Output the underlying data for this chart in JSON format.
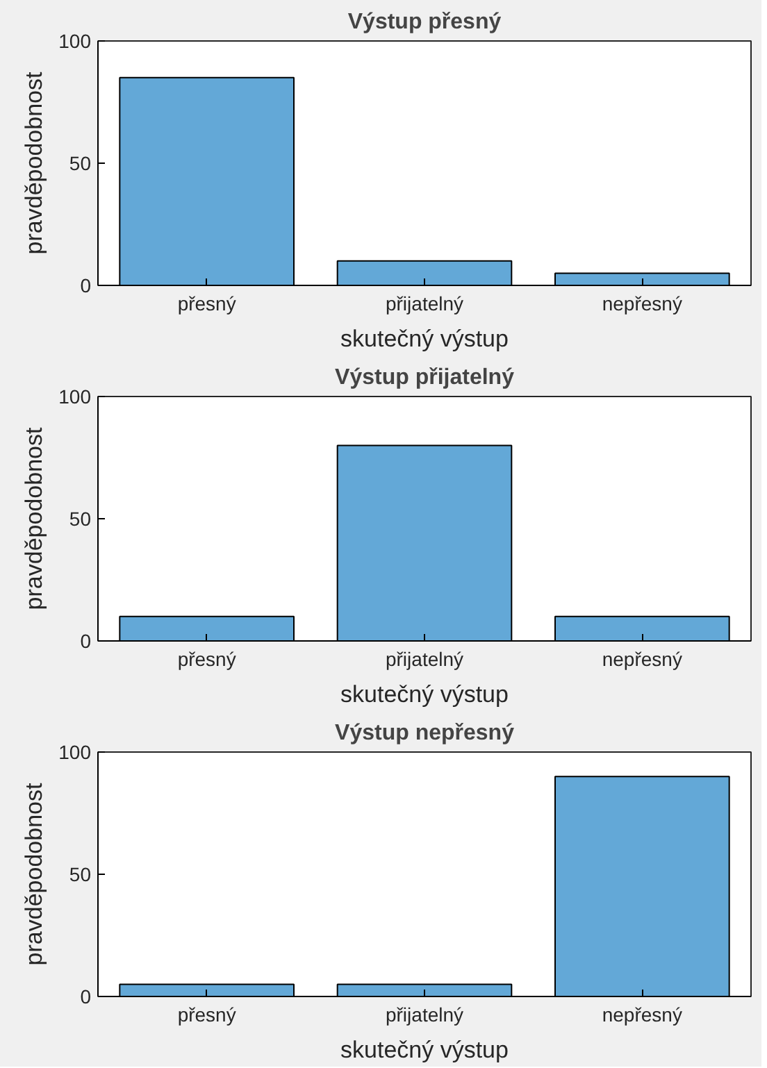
{
  "chart_data": [
    {
      "type": "bar",
      "title": "Výstup přesný",
      "xlabel": "skutečný výstup",
      "ylabel": "pravděpodobnost",
      "categories": [
        "přesný",
        "přijatelný",
        "nepřesný"
      ],
      "values": [
        85,
        10,
        5
      ],
      "color": "#63a8d7",
      "ylim": [
        0,
        100
      ],
      "yticks": [
        0,
        50,
        100
      ],
      "grid": false
    },
    {
      "type": "bar",
      "title": "Výstup přijatelný",
      "xlabel": "skutečný výstup",
      "ylabel": "pravděpodobnost",
      "categories": [
        "přesný",
        "přijatelný",
        "nepřesný"
      ],
      "values": [
        10,
        80,
        10
      ],
      "color": "#63a8d7",
      "ylim": [
        0,
        100
      ],
      "yticks": [
        0,
        50,
        100
      ],
      "grid": false
    },
    {
      "type": "bar",
      "title": "Výstup nepřesný",
      "xlabel": "skutečný výstup",
      "ylabel": "pravděpodobnost",
      "categories": [
        "přesný",
        "přijatelný",
        "nepřesný"
      ],
      "values": [
        5,
        5,
        90
      ],
      "color": "#63a8d7",
      "ylim": [
        0,
        100
      ],
      "yticks": [
        0,
        50,
        100
      ],
      "grid": false
    }
  ]
}
